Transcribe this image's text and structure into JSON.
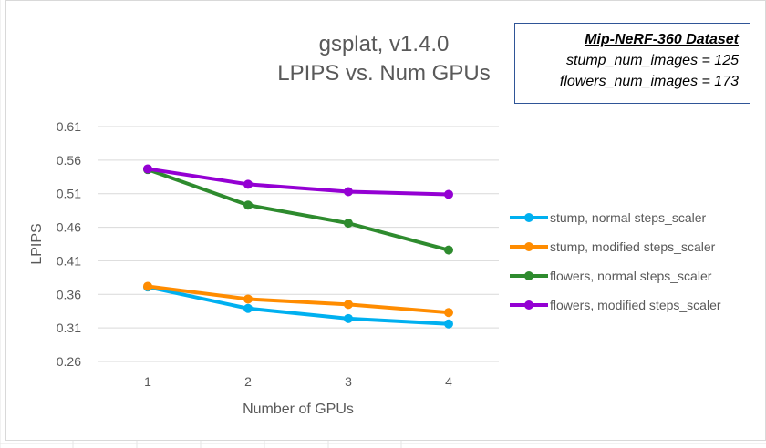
{
  "title_line1": "gsplat, v1.4.0",
  "title_line2": "LPIPS vs. Num GPUs",
  "info_box": {
    "heading": "Mip-NeRF-360 Dataset",
    "line1": "stump_num_images = 125",
    "line2": "flowers_num_images = 173",
    "border_color": "#2f5597"
  },
  "chart_data": {
    "type": "line",
    "title": "gsplat, v1.4.0 LPIPS vs. Num GPUs",
    "xlabel": "Number of GPUs",
    "ylabel": "LPIPS",
    "x": [
      1,
      2,
      3,
      4
    ],
    "yticks": [
      "0.26",
      "0.31",
      "0.36",
      "0.41",
      "0.46",
      "0.51",
      "0.56",
      "0.61"
    ],
    "ylim": [
      0.26,
      0.61
    ],
    "grid": "horizontal",
    "legend_position": "right",
    "series": [
      {
        "name": "stump, normal steps_scaler",
        "color": "#00b0f0",
        "values": [
          0.371,
          0.339,
          0.324,
          0.316
        ]
      },
      {
        "name": "stump, modified steps_scaler",
        "color": "#ff8c00",
        "values": [
          0.372,
          0.353,
          0.345,
          0.333
        ]
      },
      {
        "name": "flowers, normal steps_scaler",
        "color": "#2e8b2e",
        "values": [
          0.546,
          0.493,
          0.466,
          0.426
        ]
      },
      {
        "name": "flowers, modified steps_scaler",
        "color": "#9400d3",
        "values": [
          0.547,
          0.524,
          0.513,
          0.509
        ]
      }
    ]
  }
}
